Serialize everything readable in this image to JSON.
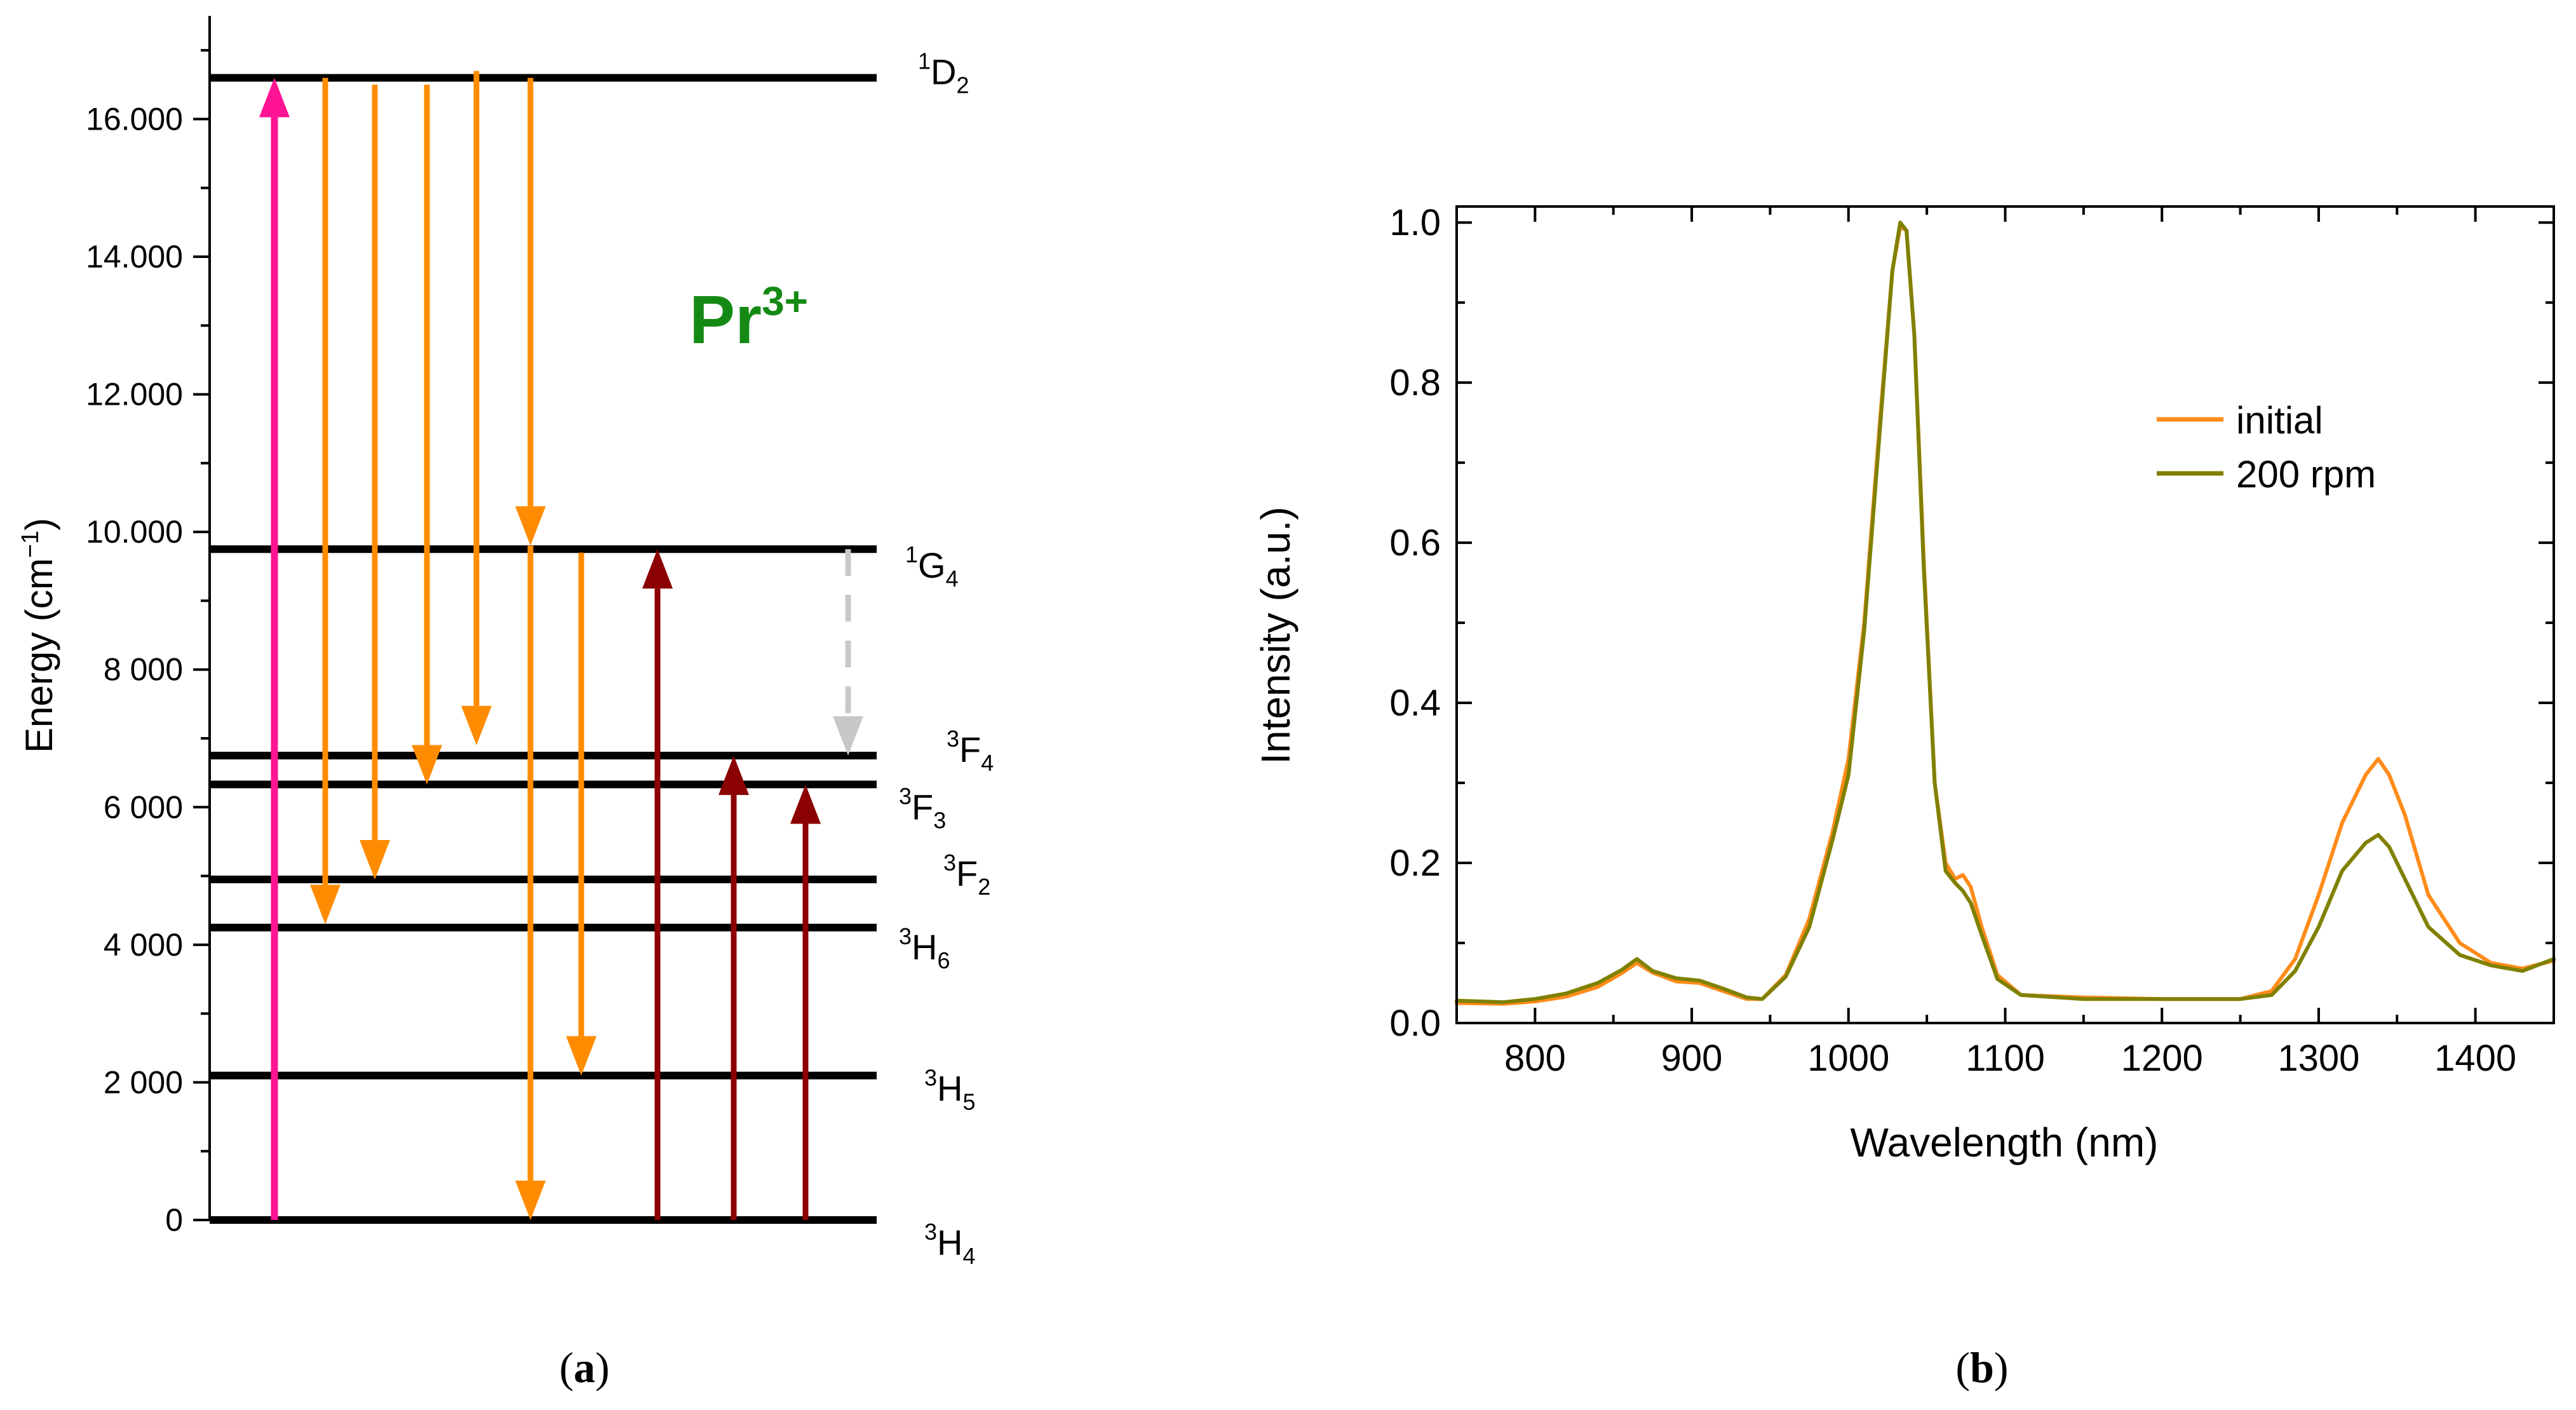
{
  "panel_a": {
    "caption_prefix": "(",
    "caption_letter": "a",
    "caption_suffix": ")",
    "ion_base": "Pr",
    "ion_charge": "3+",
    "ylabel_main": "Energy (cm",
    "ylabel_sup": "−1",
    "ylabel_close": ")",
    "ylim": [
      0,
      17500
    ],
    "yticks": [
      {
        "value": 0,
        "label": "0"
      },
      {
        "value": 2000,
        "label": "2 000"
      },
      {
        "value": 4000,
        "label": "4 000"
      },
      {
        "value": 6000,
        "label": "6 000"
      },
      {
        "value": 8000,
        "label": "8 000"
      },
      {
        "value": 10000,
        "label": "10.000"
      },
      {
        "value": 12000,
        "label": "12.000"
      },
      {
        "value": 14000,
        "label": "14.000"
      },
      {
        "value": 16000,
        "label": "16.000"
      }
    ],
    "levels": [
      {
        "energy": 16600,
        "sup": "1",
        "base": "D",
        "sub": "2"
      },
      {
        "energy": 9750,
        "sup": "1",
        "base": "G",
        "sub": "4"
      },
      {
        "energy": 6750,
        "sup": "3",
        "base": "F",
        "sub": "4"
      },
      {
        "energy": 6330,
        "sup": "3",
        "base": "F",
        "sub": "3"
      },
      {
        "energy": 4950,
        "sup": "3",
        "base": "F",
        "sub": "2"
      },
      {
        "energy": 4250,
        "sup": "3",
        "base": "H",
        "sub": "6"
      },
      {
        "energy": 2100,
        "sup": "3",
        "base": "H",
        "sub": "5"
      },
      {
        "energy": 0,
        "sup": "3",
        "base": "H",
        "sub": "4"
      }
    ],
    "transitions": [
      {
        "kind": "excitation-pump",
        "from": 0,
        "to": 16600,
        "color": "#ff1493"
      },
      {
        "kind": "emission",
        "from": 16600,
        "to": 4300,
        "color": "#ff8c00"
      },
      {
        "kind": "emission",
        "from": 16500,
        "to": 4950,
        "color": "#ff8c00"
      },
      {
        "kind": "emission",
        "from": 16500,
        "to": 6330,
        "color": "#ff8c00"
      },
      {
        "kind": "emission",
        "from": 16700,
        "to": 6900,
        "color": "#ff8c00"
      },
      {
        "kind": "emission",
        "from": 16600,
        "to": 9800,
        "color": "#ff8c00"
      },
      {
        "kind": "emission",
        "from": 9800,
        "to": 0,
        "color": "#ff8c00"
      },
      {
        "kind": "emission",
        "from": 9700,
        "to": 2100,
        "color": "#ff8c00"
      },
      {
        "kind": "absorption",
        "from": 0,
        "to": 9750,
        "color": "#8b0000"
      },
      {
        "kind": "absorption",
        "from": 0,
        "to": 6750,
        "color": "#8b0000"
      },
      {
        "kind": "absorption",
        "from": 0,
        "to": 6330,
        "color": "#8b0000"
      },
      {
        "kind": "nonradiative",
        "from": 9750,
        "to": 6750,
        "color": "#c8c8c8"
      }
    ]
  },
  "chart_data": {
    "type": "line",
    "xlabel": "Wavelength (nm)",
    "ylabel": "Intensity (a.u.)",
    "xlim": [
      750,
      1450
    ],
    "ylim": [
      0,
      1.02
    ],
    "xticks": [
      800,
      900,
      1000,
      1100,
      1200,
      1300,
      1400
    ],
    "yticks": [
      0.0,
      0.2,
      0.4,
      0.6,
      0.8,
      1.0
    ],
    "ytick_labels": [
      "0.0",
      "0.2",
      "0.4",
      "0.6",
      "0.8",
      "1.0"
    ],
    "legend_position": "upper-right",
    "series": [
      {
        "name": "initial",
        "color": "#ff8c1a",
        "x": [
          750,
          780,
          800,
          820,
          840,
          855,
          865,
          875,
          890,
          905,
          920,
          935,
          945,
          960,
          975,
          990,
          1000,
          1010,
          1020,
          1028,
          1033,
          1037,
          1042,
          1048,
          1055,
          1062,
          1068,
          1073,
          1078,
          1085,
          1095,
          1110,
          1150,
          1200,
          1250,
          1270,
          1285,
          1300,
          1315,
          1330,
          1338,
          1345,
          1355,
          1370,
          1390,
          1410,
          1430,
          1450
        ],
        "y": [
          0.025,
          0.024,
          0.027,
          0.033,
          0.045,
          0.062,
          0.075,
          0.063,
          0.052,
          0.05,
          0.04,
          0.03,
          0.03,
          0.06,
          0.13,
          0.24,
          0.33,
          0.5,
          0.75,
          0.94,
          0.995,
          0.99,
          0.86,
          0.58,
          0.3,
          0.2,
          0.18,
          0.185,
          0.17,
          0.12,
          0.06,
          0.035,
          0.032,
          0.03,
          0.03,
          0.04,
          0.08,
          0.16,
          0.25,
          0.31,
          0.33,
          0.31,
          0.26,
          0.16,
          0.1,
          0.075,
          0.068,
          0.078
        ]
      },
      {
        "name": "200 rpm",
        "color": "#808000",
        "x": [
          750,
          780,
          800,
          820,
          840,
          855,
          865,
          875,
          890,
          905,
          920,
          935,
          945,
          960,
          975,
          990,
          1000,
          1010,
          1020,
          1028,
          1033,
          1037,
          1042,
          1048,
          1055,
          1062,
          1068,
          1073,
          1078,
          1085,
          1095,
          1110,
          1150,
          1200,
          1250,
          1270,
          1285,
          1300,
          1315,
          1330,
          1338,
          1345,
          1355,
          1370,
          1390,
          1410,
          1430,
          1450
        ],
        "y": [
          0.028,
          0.026,
          0.03,
          0.037,
          0.05,
          0.066,
          0.08,
          0.065,
          0.056,
          0.053,
          0.043,
          0.032,
          0.03,
          0.058,
          0.12,
          0.23,
          0.31,
          0.49,
          0.74,
          0.94,
          1.0,
          0.99,
          0.86,
          0.57,
          0.3,
          0.19,
          0.175,
          0.165,
          0.15,
          0.11,
          0.055,
          0.035,
          0.03,
          0.03,
          0.03,
          0.035,
          0.065,
          0.12,
          0.19,
          0.225,
          0.235,
          0.22,
          0.18,
          0.12,
          0.085,
          0.072,
          0.065,
          0.08
        ]
      }
    ]
  },
  "panel_b": {
    "caption_prefix": "(",
    "caption_letter": "b",
    "caption_suffix": ")"
  }
}
